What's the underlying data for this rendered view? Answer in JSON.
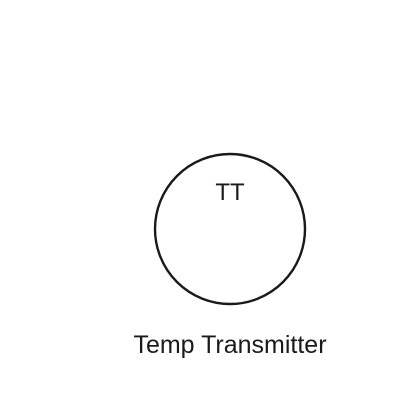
{
  "instrument": {
    "tag": "TT",
    "label": "Temp Transmitter",
    "stroke_color": "#1a1a1a",
    "background_color": "#ffffff"
  }
}
